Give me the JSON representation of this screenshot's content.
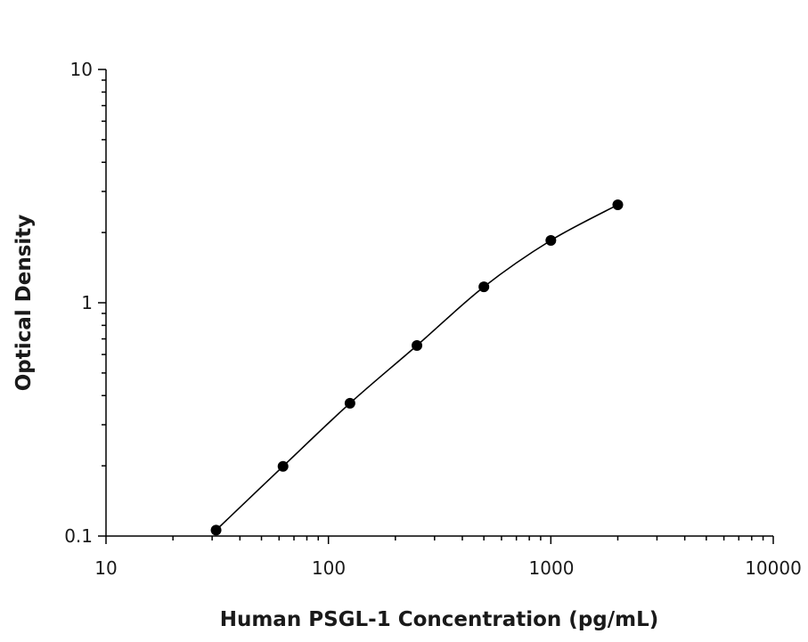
{
  "chart_data": {
    "type": "scatter",
    "title": "",
    "xlabel": "Human PSGL-1 Concentration (pg/mL)",
    "ylabel": "Optical Density",
    "xscale": "log",
    "yscale": "log",
    "xlim": [
      10,
      10000
    ],
    "ylim": [
      0.1,
      10
    ],
    "xticks": [
      "10",
      "100",
      "1000",
      "10000"
    ],
    "yticks": [
      "0.1",
      "1",
      "10"
    ],
    "grid": false,
    "fit_line": true,
    "series": [
      {
        "x": [
          31.25,
          62.5,
          125,
          250,
          500,
          1000,
          2000
        ],
        "y": [
          0.106,
          0.199,
          0.371,
          0.656,
          1.17,
          1.85,
          2.63
        ]
      }
    ],
    "colors": {
      "points": "#000000",
      "line": "#000000"
    }
  }
}
